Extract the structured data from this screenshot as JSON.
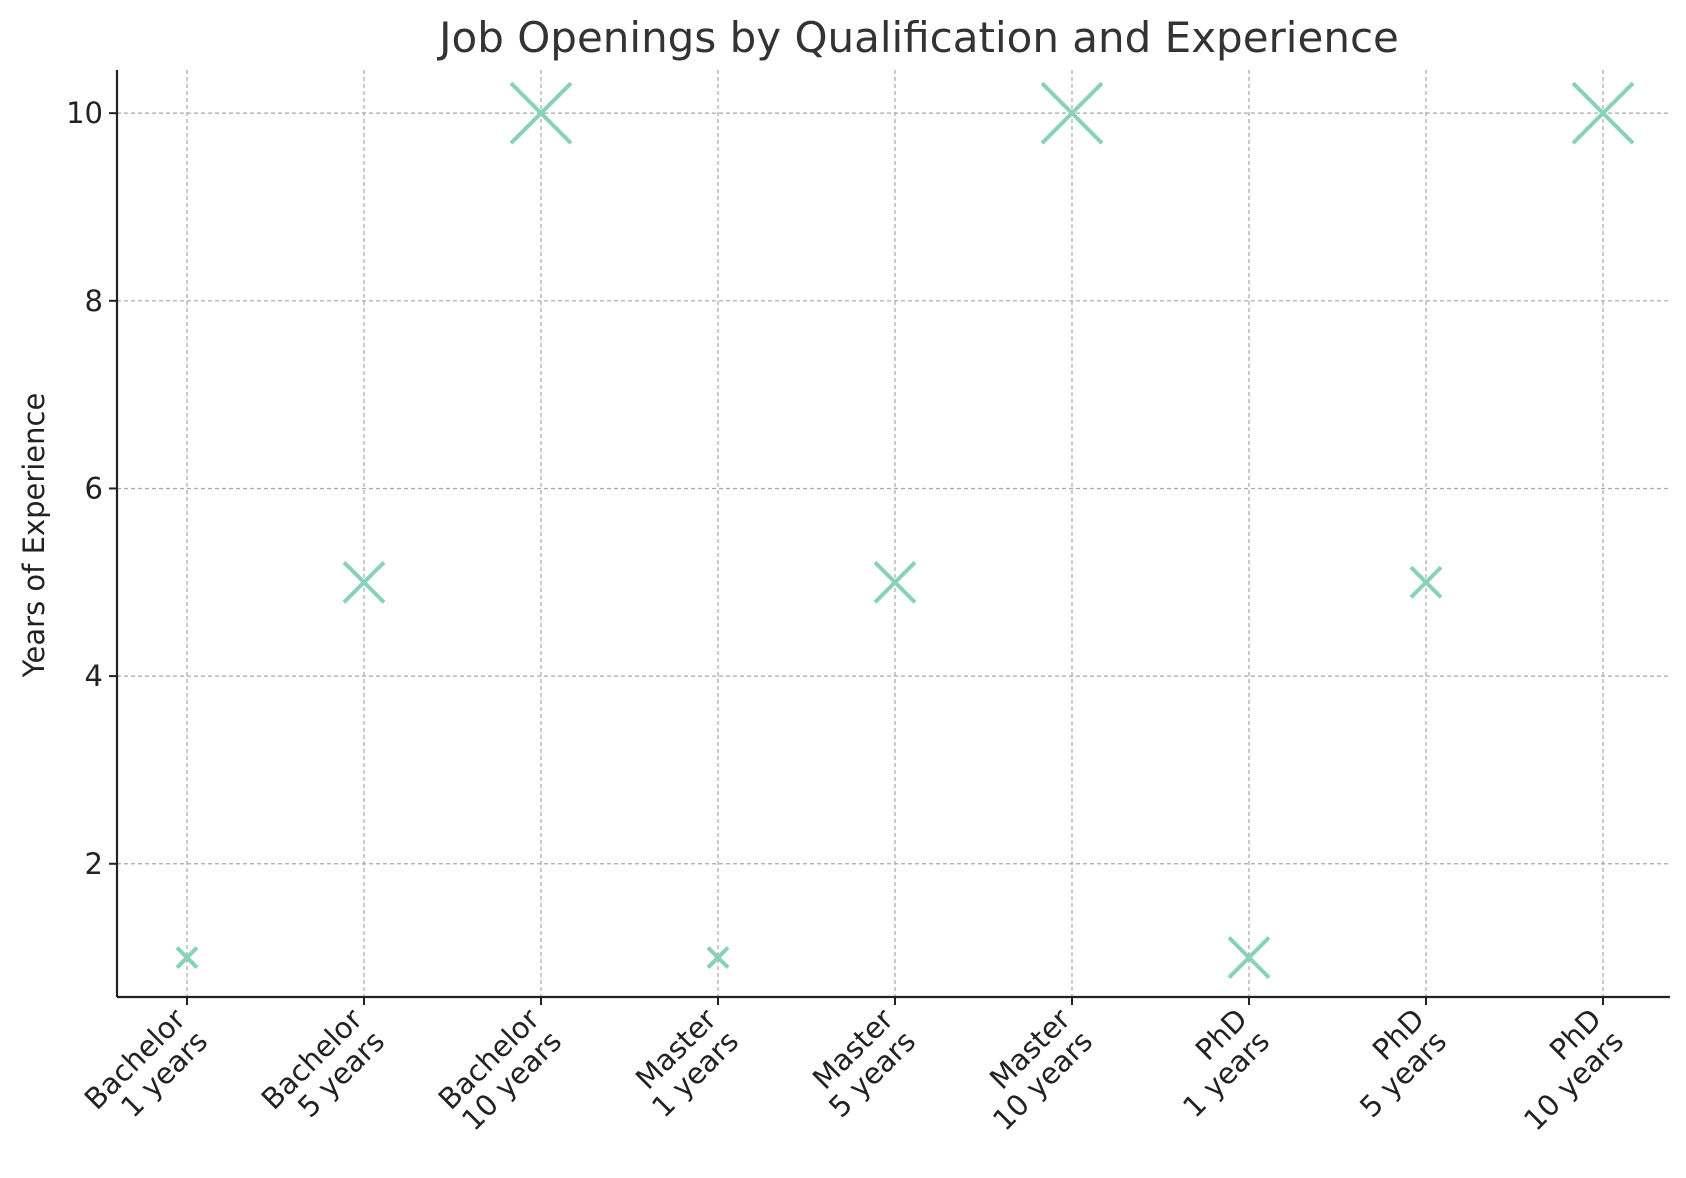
{
  "chart_data": {
    "type": "scatter",
    "title": "Job Openings by Qualification and Experience",
    "xlabel": "",
    "ylabel": "Years of Experience",
    "categories": [
      [
        "Bachelor",
        "1 years"
      ],
      [
        "Bachelor",
        "5 years"
      ],
      [
        "Bachelor",
        "10 years"
      ],
      [
        "Master",
        "1 years"
      ],
      [
        "Master",
        "5 years"
      ],
      [
        "Master",
        "10 years"
      ],
      [
        "PhD",
        "1 years"
      ],
      [
        "PhD",
        "5 years"
      ],
      [
        "PhD",
        "10 years"
      ]
    ],
    "values": [
      1,
      5,
      10,
      1,
      5,
      10,
      1,
      5,
      10
    ],
    "marker_size_values": [
      10,
      20,
      30,
      10,
      20,
      30,
      20,
      15,
      30
    ],
    "marker": "x",
    "marker_color": "#88d1bb",
    "ylim": [
      0.58,
      10.46
    ],
    "yticks": [
      2,
      4,
      6,
      8,
      10
    ],
    "ytick_labels": [
      "2",
      "4",
      "6",
      "8",
      "10"
    ],
    "grid": true
  }
}
